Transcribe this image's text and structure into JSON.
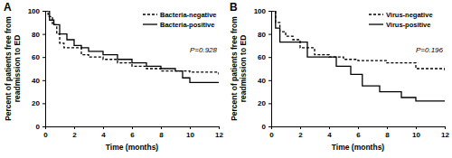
{
  "chart_data": [
    {
      "type": "line",
      "title": "A",
      "xlabel": "Time (months)",
      "ylabel": "Percent of patients free from readmission to ED",
      "annotation": "P=0.928",
      "legend": "upper right",
      "xlim": [
        0,
        12
      ],
      "xticks": [
        0,
        2,
        4,
        6,
        8,
        10,
        12
      ],
      "ylim": [
        0,
        100
      ],
      "yticks": [
        0,
        20,
        40,
        60,
        80,
        100
      ],
      "series": [
        {
          "name": "Bacteria-negative",
          "color": "#000000",
          "line_style": "dashed",
          "x": [
            0,
            0.2,
            0.5,
            0.8,
            1.0,
            1.3,
            2.0,
            2.5,
            3.0,
            4.0,
            5.0,
            6.0,
            7.0,
            8.0,
            10.0,
            12.0
          ],
          "values": [
            100,
            95,
            88,
            80,
            72,
            68,
            68,
            62,
            60,
            58,
            55,
            52,
            50,
            48,
            47,
            45
          ]
        },
        {
          "name": "Bacteria-positive",
          "color": "#000000",
          "line_style": "solid",
          "x": [
            0,
            0.3,
            0.6,
            1.0,
            1.5,
            2.0,
            2.5,
            3.0,
            4.0,
            5.0,
            6.0,
            7.0,
            8.0,
            9.0,
            9.5,
            10.0,
            12.0
          ],
          "values": [
            100,
            92,
            88,
            80,
            75,
            70,
            68,
            65,
            62,
            58,
            55,
            52,
            50,
            48,
            42,
            38,
            38
          ]
        }
      ]
    },
    {
      "type": "line",
      "title": "B",
      "xlabel": "Time (months)",
      "ylabel": "Percent of patients free from readmission to ED",
      "annotation": "P=0.196",
      "legend": "upper right",
      "xlim": [
        0,
        12
      ],
      "xticks": [
        0,
        2,
        4,
        6,
        8,
        10,
        12
      ],
      "ylim": [
        0,
        100
      ],
      "yticks": [
        0,
        20,
        40,
        60,
        80,
        100
      ],
      "series": [
        {
          "name": "Virus-negative",
          "color": "#000000",
          "line_style": "dashed",
          "x": [
            0,
            0.3,
            0.6,
            1.0,
            1.5,
            2.0,
            3.0,
            4.0,
            5.0,
            6.0,
            8.0,
            10.0,
            12.0
          ],
          "values": [
            100,
            90,
            82,
            78,
            75,
            68,
            62,
            60,
            58,
            57,
            55,
            50,
            47
          ]
        },
        {
          "name": "Virus-positive",
          "color": "#000000",
          "line_style": "solid",
          "x": [
            0,
            0.3,
            0.6,
            2.5,
            4.5,
            5.5,
            6.3,
            7.5,
            9.0,
            10.0,
            12.0
          ],
          "values": [
            100,
            85,
            73,
            60,
            52,
            45,
            35,
            30,
            25,
            22,
            22
          ]
        }
      ]
    }
  ]
}
